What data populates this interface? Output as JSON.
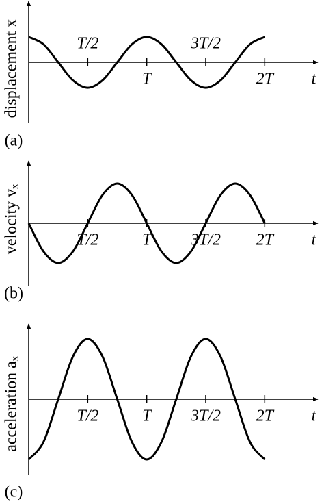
{
  "chart_data": [
    {
      "type": "line",
      "ylabel": "displacement x",
      "panel": "(a)",
      "xlabel": "t",
      "color": "#000000",
      "x": [
        0,
        0.125,
        0.25,
        0.375,
        0.5,
        0.625,
        0.75,
        0.875,
        1,
        1.125,
        1.25,
        1.375,
        1.5,
        1.625,
        1.75,
        1.875,
        2
      ],
      "values": [
        1,
        0.71,
        0,
        -0.71,
        -1,
        -0.71,
        0,
        0.71,
        1,
        0.71,
        0,
        -0.71,
        -1,
        -0.71,
        0,
        0.71,
        1
      ],
      "xlim": [
        0,
        2.45
      ],
      "ylim": [
        -2.4,
        2.4
      ],
      "xticks": [
        {
          "value": 0.5,
          "label": "T/2"
        },
        {
          "value": 1,
          "label": "T"
        },
        {
          "value": 1.5,
          "label": "3T/2"
        },
        {
          "value": 2,
          "label": "2T"
        }
      ]
    },
    {
      "type": "line",
      "ylabel": "velocity vₓ",
      "panel": "(b)",
      "xlabel": "t",
      "color": "#000000",
      "x": [
        0,
        0.125,
        0.25,
        0.375,
        0.5,
        0.625,
        0.75,
        0.875,
        1,
        1.125,
        1.25,
        1.375,
        1.5,
        1.625,
        1.75,
        1.875,
        2
      ],
      "values": [
        0,
        -0.71,
        -1,
        -0.71,
        0,
        0.71,
        1,
        0.71,
        0,
        -0.71,
        -1,
        -0.71,
        0,
        0.71,
        1,
        0.71,
        0
      ],
      "xlim": [
        0,
        2.45
      ],
      "ylim": [
        -1.57,
        1.57
      ],
      "xticks": [
        {
          "value": 0.5,
          "label": "T/2"
        },
        {
          "value": 1,
          "label": "T"
        },
        {
          "value": 1.5,
          "label": "3T/2"
        },
        {
          "value": 2,
          "label": "2T"
        }
      ]
    },
    {
      "type": "line",
      "ylabel": "acceleration aₓ",
      "panel": "(c)",
      "xlabel": "t",
      "color": "#000000",
      "x": [
        0,
        0.125,
        0.25,
        0.375,
        0.5,
        0.625,
        0.75,
        0.875,
        1,
        1.125,
        1.25,
        1.375,
        1.5,
        1.625,
        1.75,
        1.875,
        2
      ],
      "values": [
        -1,
        -0.71,
        0,
        0.71,
        1,
        0.71,
        0,
        -0.71,
        -1,
        -0.71,
        0,
        0.71,
        1,
        0.71,
        0,
        -0.71,
        -1
      ],
      "xlim": [
        0,
        2.45
      ],
      "ylim": [
        -1.25,
        1.25
      ],
      "xticks": [
        {
          "value": 0.5,
          "label": "T/2"
        },
        {
          "value": 1,
          "label": "T"
        },
        {
          "value": 1.5,
          "label": "3T/2"
        },
        {
          "value": 2,
          "label": "2T"
        }
      ]
    }
  ]
}
